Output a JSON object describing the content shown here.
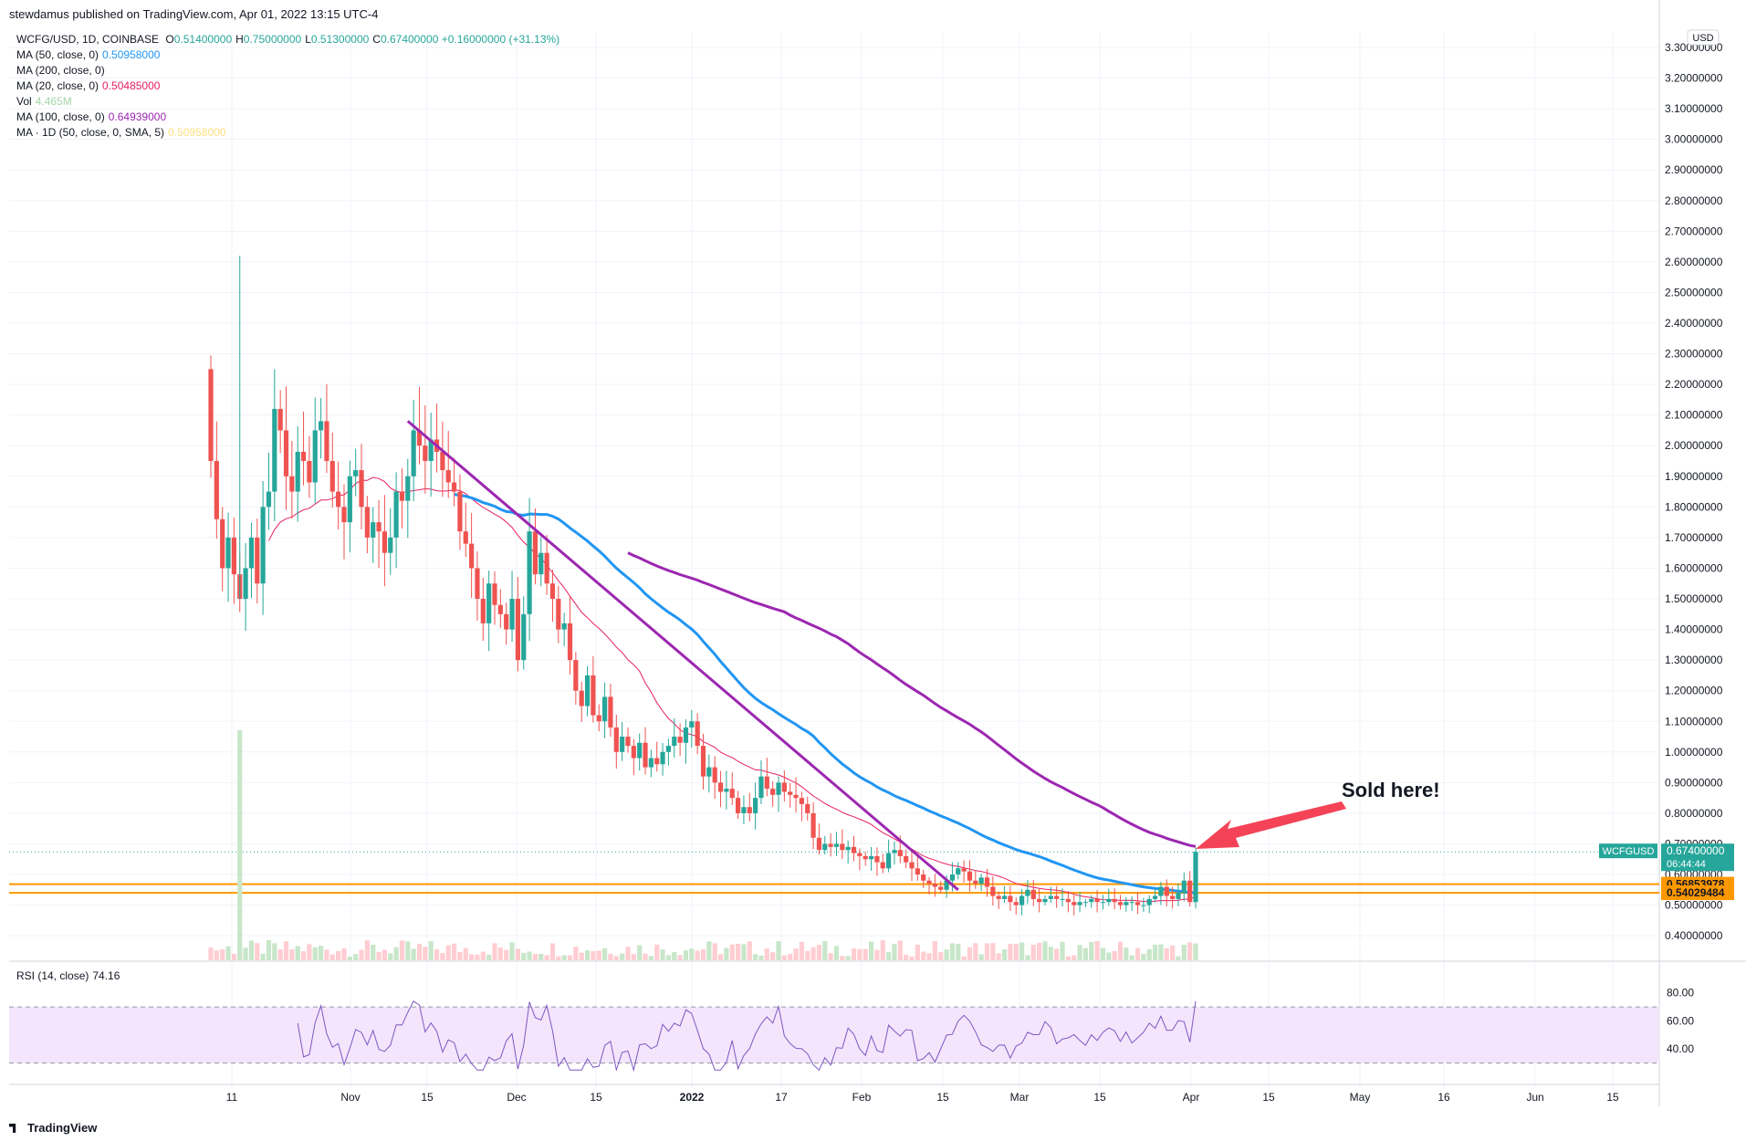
{
  "header": {
    "published": "stewdamus published on TradingView.com, Apr 01, 2022 13:15 UTC-4",
    "currency_button": "USD"
  },
  "legend": {
    "symbol": "WCFG/USD, 1D, COINBASE",
    "ohlc": [
      {
        "k": "O",
        "v": "0.51400000"
      },
      {
        "k": "H",
        "v": "0.75000000"
      },
      {
        "k": "L",
        "v": "0.51300000"
      },
      {
        "k": "C",
        "v": "0.67400000"
      }
    ],
    "change": "+0.16000000 (+31.13%)",
    "indicators": [
      {
        "label": "MA (50, close, 0)",
        "value": "0.50958000",
        "color": "#2196f3"
      },
      {
        "label": "MA (200, close, 0)",
        "value": "",
        "color": "#131722"
      },
      {
        "label": "MA (20, close, 0)",
        "value": "0.50485000",
        "color": "#e91e63"
      },
      {
        "label": "Vol",
        "value": "4.465M",
        "color": "#a5d6a7"
      },
      {
        "label": "MA (100, close, 0)",
        "value": "0.64939000",
        "color": "#9c27b0"
      },
      {
        "label": "MA · 1D (50, close, 0, SMA, 5)",
        "value": "0.50958000",
        "color": "#ffe082"
      }
    ],
    "rsi": {
      "label": "RSI (14, close)",
      "value": "74.16",
      "color": "#7e57c2"
    }
  },
  "annotation": "Sold here!",
  "price_labels": [
    {
      "symbol": "WCFGUSD",
      "value": "0.67400000",
      "sub": "06:44:44",
      "color": "#26a69a"
    },
    {
      "value": "0.56853978",
      "color": "#ff9800"
    },
    {
      "value": "0.54029484",
      "color": "#ff9800"
    }
  ],
  "footer": "TradingView",
  "chart_data": {
    "type": "candlestick",
    "title": "WCFG/USD, 1D, COINBASE",
    "ylim": [
      0.32,
      3.35
    ],
    "y_ticks": [
      "0.40000000",
      "0.50000000",
      "0.60000000",
      "0.70000000",
      "0.80000000",
      "0.90000000",
      "1.00000000",
      "1.10000000",
      "1.20000000",
      "1.30000000",
      "1.40000000",
      "1.50000000",
      "1.60000000",
      "1.70000000",
      "1.80000000",
      "1.90000000",
      "2.00000000",
      "2.10000000",
      "2.20000000",
      "2.30000000",
      "2.40000000",
      "2.50000000",
      "2.60000000",
      "2.70000000",
      "2.80000000",
      "2.90000000",
      "3.00000000",
      "3.10000000",
      "3.20000000",
      "3.30000000"
    ],
    "x_ticks": [
      "11",
      "Nov",
      "15",
      "Dec",
      "15",
      "2022",
      "17",
      "Feb",
      "15",
      "Mar",
      "15",
      "Apr",
      "15",
      "May",
      "16",
      "Jun",
      "15"
    ],
    "x_tick_bold": "2022",
    "x_tick_days": [
      11,
      22,
      32,
      43,
      53,
      65,
      77,
      87,
      97,
      107,
      117,
      127,
      137,
      147,
      157,
      168,
      178
    ],
    "series_closes": [
      1.95,
      1.76,
      1.6,
      1.7,
      1.58,
      1.5,
      1.6,
      1.7,
      1.55,
      1.8,
      1.85,
      2.12,
      2.05,
      1.9,
      1.85,
      1.98,
      1.95,
      1.88,
      2.05,
      2.08,
      1.95,
      1.85,
      1.8,
      1.75,
      1.9,
      1.92,
      1.8,
      1.7,
      1.75,
      1.72,
      1.65,
      1.7,
      1.85,
      1.82,
      1.9,
      2.05,
      2.0,
      1.95,
      2.02,
      1.98,
      1.92,
      1.88,
      1.85,
      1.72,
      1.68,
      1.6,
      1.5,
      1.42,
      1.55,
      1.48,
      1.45,
      1.4,
      1.5,
      1.3,
      1.45,
      1.72,
      1.58,
      1.65,
      1.55,
      1.5,
      1.4,
      1.42,
      1.3,
      1.2,
      1.15,
      1.25,
      1.12,
      1.1,
      1.18,
      1.08,
      1.0,
      1.05,
      1.02,
      0.98,
      1.03,
      0.95,
      0.98,
      0.96,
      1.0,
      1.02,
      1.05,
      1.03,
      1.08,
      1.1,
      1.02,
      0.92,
      0.95,
      0.9,
      0.87,
      0.88,
      0.85,
      0.8,
      0.82,
      0.8,
      0.85,
      0.92,
      0.88,
      0.86,
      0.9,
      0.87,
      0.86,
      0.85,
      0.83,
      0.8,
      0.72,
      0.68,
      0.7,
      0.69,
      0.7,
      0.68,
      0.69,
      0.67,
      0.66,
      0.65,
      0.66,
      0.64,
      0.62,
      0.67,
      0.68,
      0.66,
      0.64,
      0.62,
      0.6,
      0.58,
      0.57,
      0.56,
      0.55,
      0.58,
      0.6,
      0.62,
      0.61,
      0.58,
      0.57,
      0.59,
      0.56,
      0.53,
      0.52,
      0.53,
      0.51,
      0.5,
      0.53,
      0.55,
      0.52,
      0.51,
      0.52,
      0.53,
      0.52,
      0.52,
      0.51,
      0.5,
      0.51,
      0.51,
      0.52,
      0.51,
      0.51,
      0.52,
      0.51,
      0.5,
      0.51,
      0.51,
      0.5,
      0.5,
      0.52,
      0.53,
      0.56,
      0.53,
      0.52,
      0.54,
      0.58,
      0.51,
      0.674
    ],
    "levels": [
      0.56853978,
      0.54029484
    ],
    "ma20_last": 0.50485,
    "ma50_last": 0.50958,
    "ma100_last": 0.64939,
    "rsi_ylim": [
      20,
      85
    ],
    "rsi_ticks": [
      "40.00",
      "60.00",
      "80.00"
    ],
    "rsi_band": [
      30,
      70
    ],
    "rsi_last": 74.16
  }
}
